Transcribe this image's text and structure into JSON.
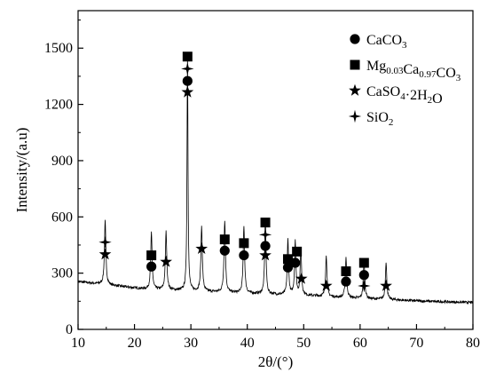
{
  "chart_data": {
    "type": "line",
    "xlabel": "2θ/(°)",
    "ylabel": "Intensity/(a.u)",
    "xlim": [
      10,
      80
    ],
    "ylim": [
      0,
      1700
    ],
    "x_ticks": [
      10,
      20,
      30,
      40,
      50,
      60,
      70,
      80
    ],
    "y_ticks": [
      0,
      300,
      600,
      900,
      1200,
      1500
    ],
    "grid": false,
    "legend_position": "top-right",
    "legend": [
      {
        "marker": "circle",
        "name": "CaCO3",
        "parts": [
          [
            "CaCO",
            "n"
          ],
          [
            "3",
            "sub"
          ]
        ]
      },
      {
        "marker": "square",
        "name": "Mg0.03Ca0.97CO3",
        "parts": [
          [
            "Mg",
            "n"
          ],
          [
            "0.03",
            "sub"
          ],
          [
            "Ca",
            "n"
          ],
          [
            "0.97",
            "sub"
          ],
          [
            "CO",
            "n"
          ],
          [
            "3",
            "sub"
          ]
        ]
      },
      {
        "marker": "star5",
        "name": "CaSO4·2H2O",
        "parts": [
          [
            "CaSO",
            "n"
          ],
          [
            "4",
            "sub"
          ],
          [
            "·2H",
            "n"
          ],
          [
            "2",
            "sub"
          ],
          [
            "O",
            "n"
          ]
        ]
      },
      {
        "marker": "star4",
        "name": "SiO2",
        "parts": [
          [
            "SiO",
            "n"
          ],
          [
            "2",
            "sub"
          ]
        ]
      }
    ],
    "baseline": [
      [
        10,
        255
      ],
      [
        12,
        248
      ],
      [
        15,
        238
      ],
      [
        18,
        228
      ],
      [
        22,
        215
      ],
      [
        26,
        210
      ],
      [
        30,
        205
      ],
      [
        34,
        200
      ],
      [
        38,
        195
      ],
      [
        42,
        190
      ],
      [
        46,
        185
      ],
      [
        50,
        182
      ],
      [
        54,
        175
      ],
      [
        58,
        168
      ],
      [
        62,
        162
      ],
      [
        66,
        158
      ],
      [
        70,
        152
      ],
      [
        74,
        148
      ],
      [
        78,
        145
      ],
      [
        80,
        143
      ]
    ],
    "peaks": [
      {
        "x": 14.8,
        "y": 340,
        "w": 0.15
      },
      {
        "x": 23.0,
        "y": 300,
        "w": 0.15
      },
      {
        "x": 25.6,
        "y": 310,
        "w": 0.15
      },
      {
        "x": 29.4,
        "y": 1270,
        "w": 0.1
      },
      {
        "x": 31.9,
        "y": 345,
        "w": 0.15
      },
      {
        "x": 36.0,
        "y": 385,
        "w": 0.15
      },
      {
        "x": 39.4,
        "y": 360,
        "w": 0.15
      },
      {
        "x": 43.2,
        "y": 400,
        "w": 0.14
      },
      {
        "x": 47.2,
        "y": 295,
        "w": 0.14
      },
      {
        "x": 48.5,
        "y": 290,
        "w": 0.14
      },
      {
        "x": 49.5,
        "y": 250,
        "w": 0.14
      },
      {
        "x": 54.0,
        "y": 215,
        "w": 0.15
      },
      {
        "x": 57.5,
        "y": 215,
        "w": 0.15
      },
      {
        "x": 60.7,
        "y": 210,
        "w": 0.15
      },
      {
        "x": 64.6,
        "y": 195,
        "w": 0.15
      }
    ],
    "markers": [
      {
        "x": 14.8,
        "y": 400,
        "shape": "star5"
      },
      {
        "x": 14.8,
        "y": 465,
        "shape": "star4"
      },
      {
        "x": 23.0,
        "y": 335,
        "shape": "circle"
      },
      {
        "x": 23.0,
        "y": 395,
        "shape": "square"
      },
      {
        "x": 25.6,
        "y": 360,
        "shape": "star5"
      },
      {
        "x": 29.4,
        "y": 1265,
        "shape": "star5"
      },
      {
        "x": 29.4,
        "y": 1325,
        "shape": "circle"
      },
      {
        "x": 29.4,
        "y": 1390,
        "shape": "star4"
      },
      {
        "x": 29.4,
        "y": 1455,
        "shape": "square"
      },
      {
        "x": 31.9,
        "y": 430,
        "shape": "star5"
      },
      {
        "x": 36.0,
        "y": 420,
        "shape": "circle"
      },
      {
        "x": 36.0,
        "y": 480,
        "shape": "square"
      },
      {
        "x": 39.4,
        "y": 395,
        "shape": "circle"
      },
      {
        "x": 39.4,
        "y": 460,
        "shape": "square"
      },
      {
        "x": 43.2,
        "y": 395,
        "shape": "star5"
      },
      {
        "x": 43.2,
        "y": 445,
        "shape": "circle"
      },
      {
        "x": 43.2,
        "y": 505,
        "shape": "star4"
      },
      {
        "x": 43.2,
        "y": 570,
        "shape": "square"
      },
      {
        "x": 47.2,
        "y": 330,
        "shape": "circle"
      },
      {
        "x": 47.2,
        "y": 375,
        "shape": "square"
      },
      {
        "x": 48.5,
        "y": 355,
        "shape": "circle"
      },
      {
        "x": 48.8,
        "y": 415,
        "shape": "square"
      },
      {
        "x": 49.6,
        "y": 270,
        "shape": "star5"
      },
      {
        "x": 54.0,
        "y": 232,
        "shape": "star5"
      },
      {
        "x": 57.5,
        "y": 255,
        "shape": "circle"
      },
      {
        "x": 57.5,
        "y": 310,
        "shape": "square"
      },
      {
        "x": 60.7,
        "y": 232,
        "shape": "star4"
      },
      {
        "x": 60.7,
        "y": 290,
        "shape": "circle"
      },
      {
        "x": 60.7,
        "y": 355,
        "shape": "square"
      },
      {
        "x": 64.6,
        "y": 232,
        "shape": "star5"
      }
    ]
  }
}
